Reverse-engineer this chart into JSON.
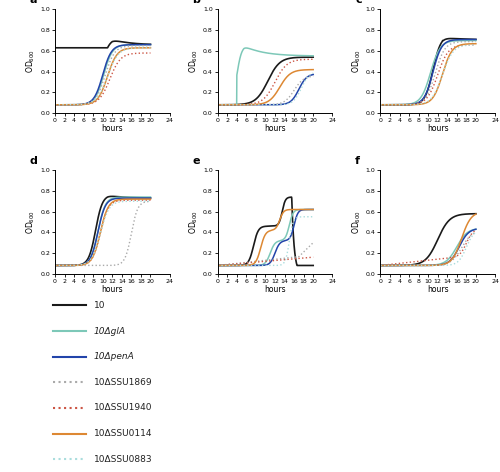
{
  "figure_size": [
    5.0,
    4.72
  ],
  "dpi": 100,
  "subplots": [
    "a",
    "b",
    "c",
    "d",
    "e",
    "f"
  ],
  "xlabel": "hours",
  "ylabel": "OD₆₀₀",
  "colors": {
    "strain10": "#1a1a1a",
    "glA": "#7dc8b8",
    "penA": "#2244aa",
    "SSU1869": "#aaaaaa",
    "SSU1940": "#cc5544",
    "SSU0114": "#dd8833",
    "SSU0883": "#aadddd"
  },
  "legend_labels": [
    "10",
    "10ΔglA",
    "10ΔpenA",
    "10ΔSSU1869",
    "10ΔSSU1940",
    "10ΔSSU0114",
    "10ΔSSU0883"
  ]
}
